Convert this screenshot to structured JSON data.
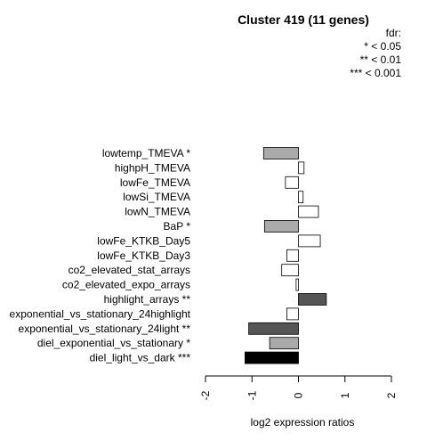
{
  "chart_data": {
    "type": "bar",
    "orientation": "horizontal",
    "title": "Cluster 419 (11 genes)",
    "xlabel": "log2 expression ratios",
    "ylabel": "",
    "xlim": [
      -2,
      2
    ],
    "xticks": [
      "-2",
      "-1",
      "0",
      "1",
      "2"
    ],
    "grid": false,
    "legend": {
      "position": "top-right",
      "title": "fdr:",
      "entries": [
        "* < 0.05",
        "** < 0.01",
        "*** < 0.001"
      ]
    },
    "categories": [
      "lowtemp_TMEVA *",
      "highpH_TMEVA",
      "lowFe_TMEVA",
      "lowSi_TMEVA",
      "lowN_TMEVA",
      "BaP *",
      "lowFe_KTKB_Day5",
      "lowFe_KTKB_Day3",
      "co2_elevated_stat_arrays",
      "co2_elevated_expo_arrays",
      "highlight_arrays **",
      "exponential_vs_stationary_24highlight",
      "exponential_vs_stationary_24light **",
      "diel_exponential_vs_stationary *",
      "diel_light_vs_dark ***"
    ],
    "values": [
      -0.75,
      0.12,
      -0.28,
      0.1,
      0.43,
      -0.73,
      0.47,
      -0.25,
      -0.36,
      -0.05,
      0.6,
      -0.25,
      -1.07,
      -0.62,
      -1.15
    ],
    "colors": [
      "#aaaaaa",
      "#ffffff",
      "#ffffff",
      "#ffffff",
      "#ffffff",
      "#aaaaaa",
      "#ffffff",
      "#ffffff",
      "#ffffff",
      "#ffffff",
      "#555555",
      "#ffffff",
      "#555555",
      "#aaaaaa",
      "#000000"
    ]
  }
}
